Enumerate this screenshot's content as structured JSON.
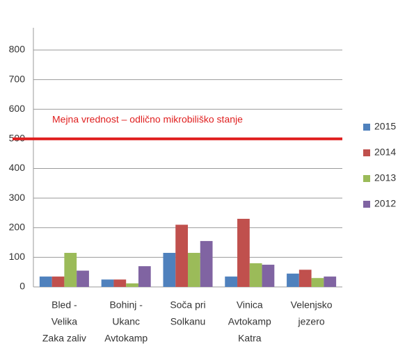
{
  "chart_data": {
    "type": "bar",
    "categories": [
      [
        "Bled -",
        "Velika",
        "Zaka zaliv"
      ],
      [
        "Bohinj -",
        "Ukanc",
        "Avtokamp"
      ],
      [
        "Soča pri",
        "Solkanu"
      ],
      [
        "Vinica",
        "Avtokamp",
        "Katra"
      ],
      [
        "Velenjsko",
        "jezero"
      ]
    ],
    "series": [
      {
        "name": "2015",
        "color": "#4f81bd",
        "values": [
          35,
          25,
          115,
          35,
          45
        ]
      },
      {
        "name": "2014",
        "color": "#c0504d",
        "values": [
          35,
          25,
          210,
          230,
          58
        ]
      },
      {
        "name": "2013",
        "color": "#9bbb59",
        "values": [
          115,
          12,
          115,
          80,
          30
        ]
      },
      {
        "name": "2012",
        "color": "#8064a2",
        "values": [
          55,
          70,
          155,
          75,
          35
        ]
      }
    ],
    "ylim": [
      0,
      875
    ],
    "yticks": [
      0,
      100,
      200,
      300,
      400,
      500,
      600,
      700,
      800
    ],
    "grid": true,
    "threshold": {
      "value": 500,
      "label": "Mejna vrednost – odlično mikrobiliško stanje",
      "color": "#e02020"
    },
    "legend": "right"
  }
}
